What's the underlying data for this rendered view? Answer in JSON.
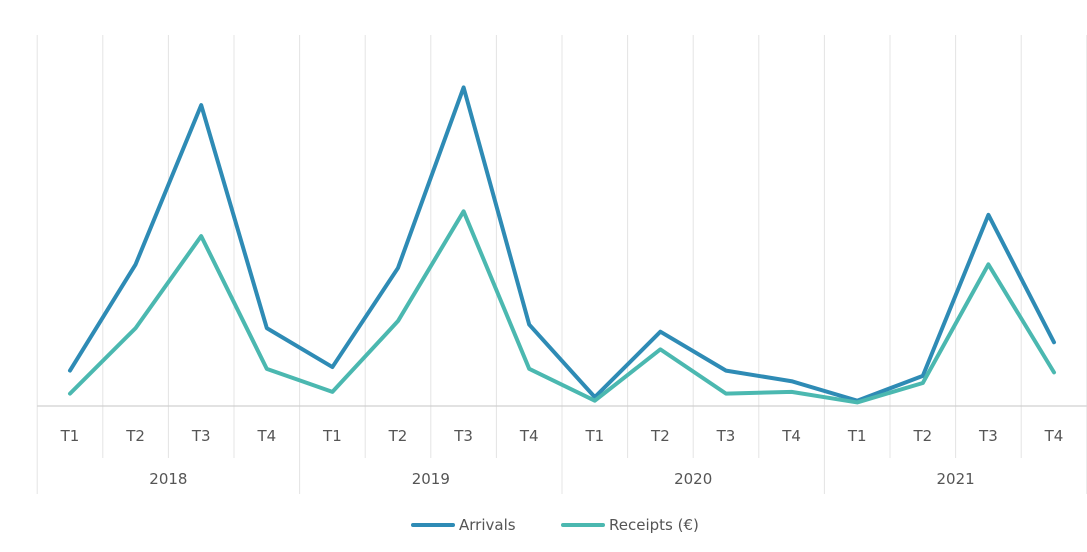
{
  "chart_data": {
    "type": "line",
    "title": "",
    "xlabel": "",
    "ylabel": "",
    "grid": true,
    "legend_position": "bottom",
    "categories": [
      "T1",
      "T2",
      "T3",
      "T4",
      "T1",
      "T2",
      "T3",
      "T4",
      "T1",
      "T2",
      "T3",
      "T4",
      "T1",
      "T2",
      "T3",
      "T4"
    ],
    "groups": [
      {
        "label": "2018",
        "count": 4
      },
      {
        "label": "2019",
        "count": 4
      },
      {
        "label": "2020",
        "count": 4
      },
      {
        "label": "2021",
        "count": 4
      }
    ],
    "ylim": [
      0,
      100
    ],
    "series": [
      {
        "name": "Arrivals",
        "color": "#2e8bb5",
        "values": [
          10,
          40,
          85,
          22,
          11,
          39,
          90,
          23,
          2.5,
          21,
          10,
          7,
          1.5,
          8.5,
          54,
          18
        ]
      },
      {
        "name": "Receipts (€)",
        "color": "#4bb8b0",
        "values": [
          3.5,
          22,
          48,
          10.5,
          4,
          24,
          55,
          10.5,
          1.5,
          16,
          3.5,
          4,
          1,
          6.5,
          40,
          9.5
        ]
      }
    ]
  }
}
